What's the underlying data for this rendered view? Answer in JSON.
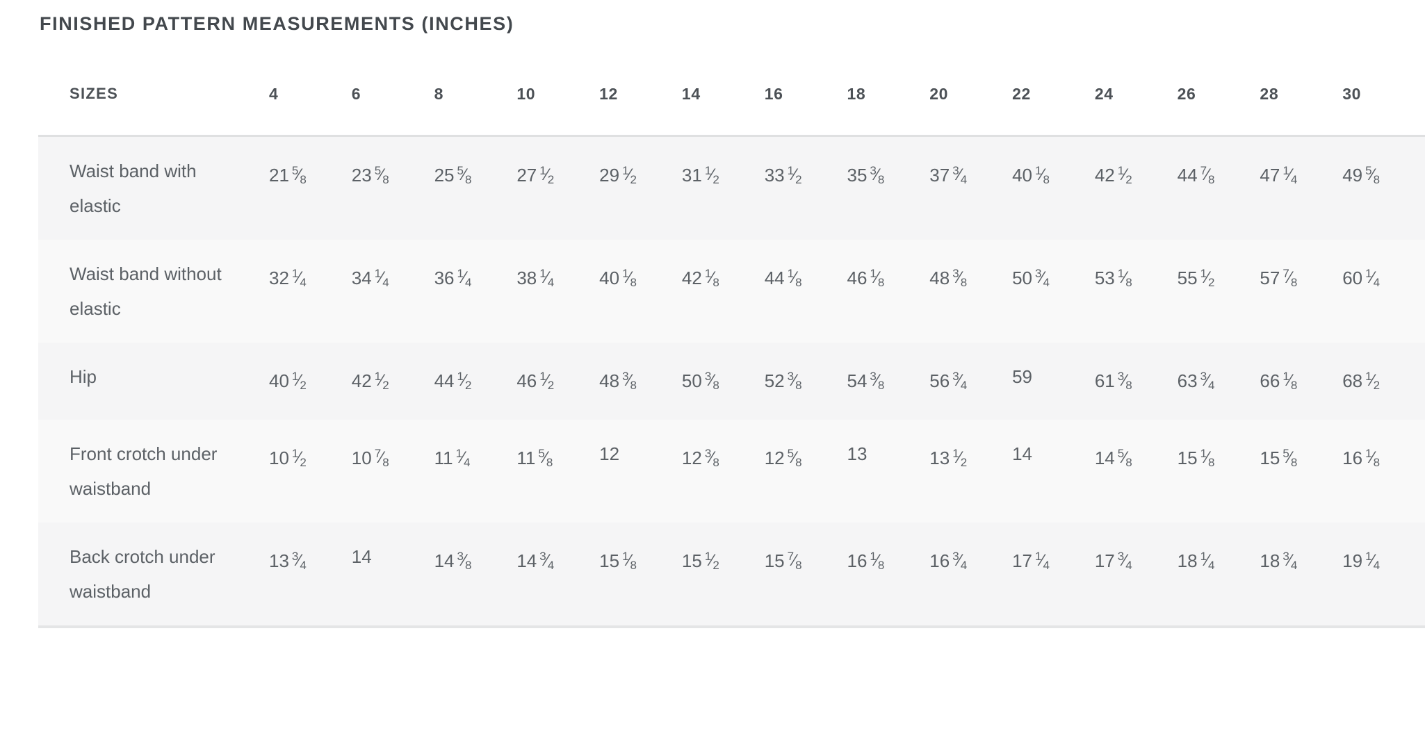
{
  "title": "FINISHED PATTERN MEASUREMENTS (INCHES)",
  "table": {
    "header_label": "SIZES",
    "sizes": [
      "4",
      "6",
      "8",
      "10",
      "12",
      "14",
      "16",
      "18",
      "20",
      "22",
      "24",
      "26",
      "28",
      "30"
    ],
    "rows": [
      {
        "label": "Waist band with elastic",
        "values": [
          "21 5/8",
          "23 5/8",
          "25 5/8",
          "27 1/2",
          "29 1/2",
          "31 1/2",
          "33 1/2",
          "35 3/8",
          "37 3/4",
          "40 1/8",
          "42 1/2",
          "44 7/8",
          "47 1/4",
          "49 5/8"
        ]
      },
      {
        "label": "Waist band without elastic",
        "values": [
          "32 1/4",
          "34 1/4",
          "36 1/4",
          "38 1/4",
          "40 1/8",
          "42 1/8",
          "44 1/8",
          "46 1/8",
          "48 3/8",
          "50 3/4",
          "53 1/8",
          "55 1/2",
          "57 7/8",
          "60 1/4"
        ]
      },
      {
        "label": "Hip",
        "values": [
          "40 1/2",
          "42 1/2",
          "44 1/2",
          "46 1/2",
          "48 3/8",
          "50 3/8",
          "52 3/8",
          "54 3/8",
          "56 3/4",
          "59",
          "61 3/8",
          "63 3/4",
          "66 1/8",
          "68 1/2"
        ]
      },
      {
        "label": "Front crotch under waistband",
        "values": [
          "10 1/2",
          "10 7/8",
          "11 1/4",
          "11 5/8",
          "12",
          "12 3/8",
          "12 5/8",
          "13",
          "13 1/2",
          "14",
          "14 5/8",
          "15 1/8",
          "15 5/8",
          "16 1/8"
        ]
      },
      {
        "label": "Back crotch under waistband",
        "values": [
          "13 3/4",
          "14",
          "14 3/8",
          "14 3/4",
          "15 1/8",
          "15 1/2",
          "15 7/8",
          "16 1/8",
          "16 3/4",
          "17 1/4",
          "17 3/4",
          "18 1/4",
          "18 3/4",
          "19 1/4"
        ]
      }
    ]
  },
  "colors": {
    "title_text": "#43484d",
    "header_text": "#4c5156",
    "body_text": "#5c6166",
    "row_shade_dark": "#f5f5f6",
    "row_shade_light": "#f9f9f9",
    "header_rule": "#dfe0e1",
    "bottom_rule": "#e4e5e6",
    "background": "#ffffff"
  }
}
